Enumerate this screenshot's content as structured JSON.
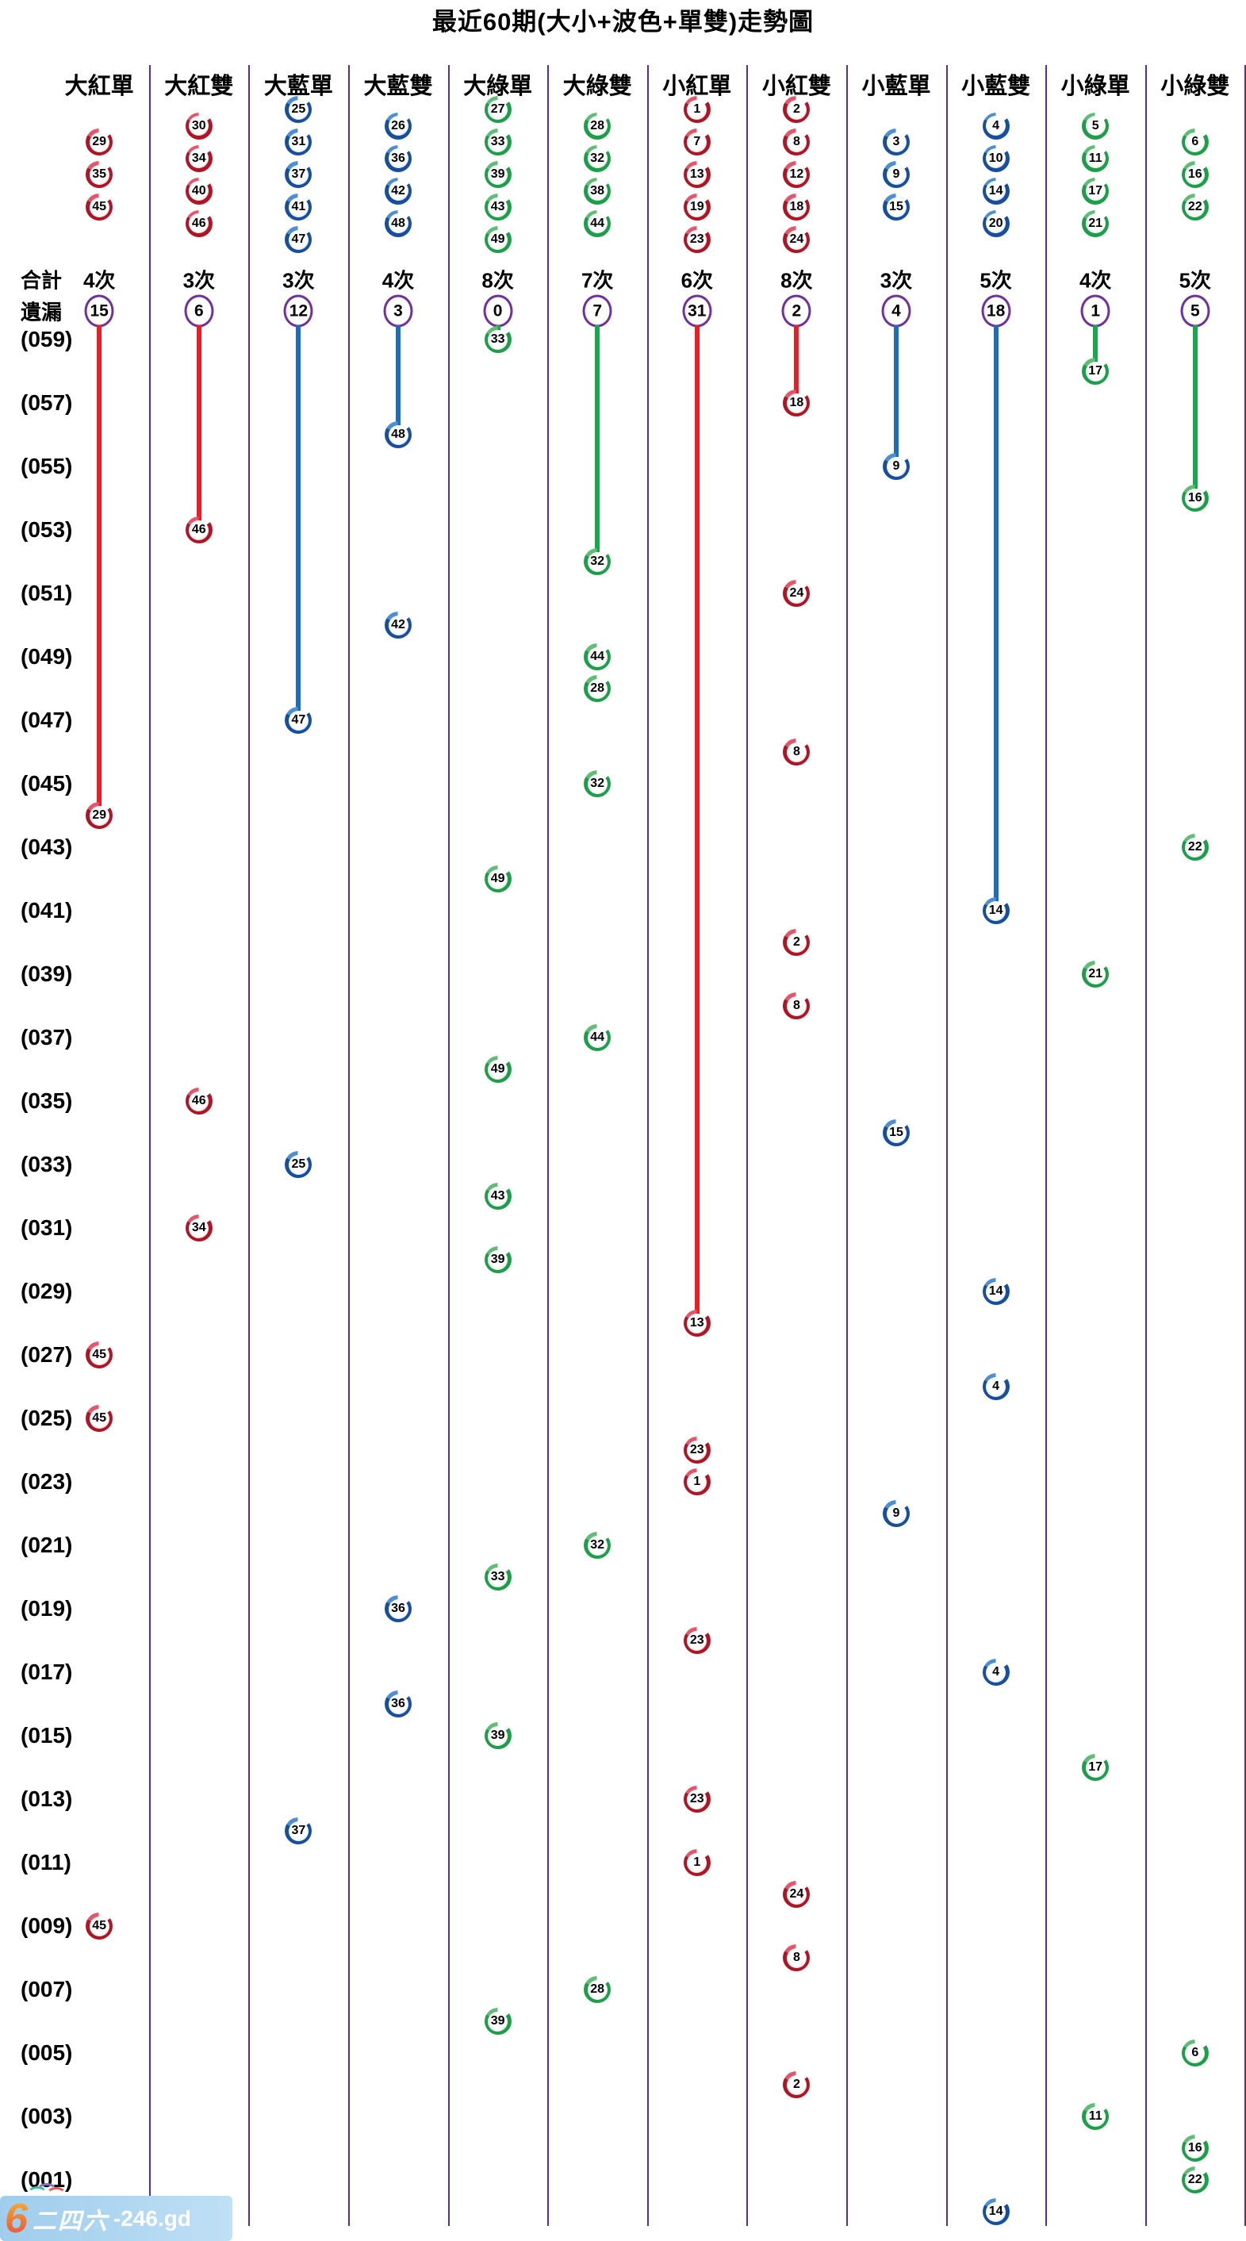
{
  "labels": {
    "total_label": "合計",
    "miss_label": "遺漏",
    "times_suffix": "次"
  },
  "colors": {
    "purple": "#5b2d8e",
    "circle_purple": "#7030a0",
    "red": {
      "line": "#ee1c25",
      "dark": "#b01425",
      "light": "#e8556a"
    },
    "blue": {
      "line": "#1c6dc1",
      "dark": "#164f9e",
      "light": "#4c8fd6"
    },
    "green": {
      "line": "#17a84b",
      "dark": "#1d9e4b",
      "light": "#5fbe75"
    }
  },
  "watermark": {
    "logo_char": "6",
    "brand_cn": "二四六",
    "brand_suffix": "-246.gd"
  },
  "chart_data": {
    "type": "scatter",
    "title": "最近60期(大小+波色+單雙)走勢圖",
    "legend_note": "columns are category lanes; points mark which category each period's number fell into; vertical line shows span since most recent hit",
    "columns": [
      {
        "label": "大紅單",
        "group": "red",
        "numbers": [
          29,
          35,
          45
        ],
        "total": 4,
        "miss": 15
      },
      {
        "label": "大紅雙",
        "group": "red",
        "numbers": [
          30,
          34,
          40,
          46
        ],
        "total": 3,
        "miss": 6
      },
      {
        "label": "大藍單",
        "group": "blue",
        "numbers": [
          25,
          31,
          37,
          41,
          47
        ],
        "total": 3,
        "miss": 12
      },
      {
        "label": "大藍雙",
        "group": "blue",
        "numbers": [
          26,
          36,
          42,
          48
        ],
        "total": 4,
        "miss": 3
      },
      {
        "label": "大綠單",
        "group": "green",
        "numbers": [
          27,
          33,
          39,
          43,
          49
        ],
        "total": 8,
        "miss": 0
      },
      {
        "label": "大綠雙",
        "group": "green",
        "numbers": [
          28,
          32,
          38,
          44
        ],
        "total": 7,
        "miss": 7
      },
      {
        "label": "小紅單",
        "group": "red",
        "numbers": [
          1,
          7,
          13,
          19,
          23
        ],
        "total": 6,
        "miss": 31
      },
      {
        "label": "小紅雙",
        "group": "red",
        "numbers": [
          2,
          8,
          12,
          18,
          24
        ],
        "total": 8,
        "miss": 2
      },
      {
        "label": "小藍單",
        "group": "blue",
        "numbers": [
          3,
          9,
          15
        ],
        "total": 3,
        "miss": 4
      },
      {
        "label": "小藍雙",
        "group": "blue",
        "numbers": [
          4,
          10,
          14,
          20
        ],
        "total": 5,
        "miss": 18
      },
      {
        "label": "小綠單",
        "group": "green",
        "numbers": [
          5,
          11,
          17,
          21
        ],
        "total": 4,
        "miss": 1
      },
      {
        "label": "小綠雙",
        "group": "green",
        "numbers": [
          6,
          16,
          22
        ],
        "total": 5,
        "miss": 5
      }
    ],
    "row_labels": [
      "(059)",
      "(057)",
      "(055)",
      "(053)",
      "(051)",
      "(049)",
      "(047)",
      "(045)",
      "(043)",
      "(041)",
      "(039)",
      "(037)",
      "(035)",
      "(033)",
      "(031)",
      "(029)",
      "(027)",
      "(025)",
      "(023)",
      "(021)",
      "(019)",
      "(017)",
      "(015)",
      "(013)",
      "(011)",
      "(009)",
      "(007)",
      "(005)",
      "(003)",
      "(001)"
    ],
    "points": [
      {
        "period": 59,
        "col": 4,
        "number": 33
      },
      {
        "period": 58,
        "col": 10,
        "number": 17
      },
      {
        "period": 57,
        "col": 7,
        "number": 18
      },
      {
        "period": 56,
        "col": 3,
        "number": 48
      },
      {
        "period": 55,
        "col": 8,
        "number": 9
      },
      {
        "period": 54,
        "col": 11,
        "number": 16
      },
      {
        "period": 53,
        "col": 1,
        "number": 46
      },
      {
        "period": 52,
        "col": 5,
        "number": 32
      },
      {
        "period": 51,
        "col": 7,
        "number": 24
      },
      {
        "period": 50,
        "col": 3,
        "number": 42
      },
      {
        "period": 49,
        "col": 5,
        "number": 44
      },
      {
        "period": 48,
        "col": 5,
        "number": 28
      },
      {
        "period": 47,
        "col": 2,
        "number": 47
      },
      {
        "period": 46,
        "col": 7,
        "number": 8
      },
      {
        "period": 45,
        "col": 5,
        "number": 32
      },
      {
        "period": 44,
        "col": 0,
        "number": 29
      },
      {
        "period": 43,
        "col": 11,
        "number": 22
      },
      {
        "period": 42,
        "col": 4,
        "number": 49
      },
      {
        "period": 41,
        "col": 9,
        "number": 14
      },
      {
        "period": 40,
        "col": 7,
        "number": 2
      },
      {
        "period": 39,
        "col": 10,
        "number": 21
      },
      {
        "period": 38,
        "col": 7,
        "number": 8
      },
      {
        "period": 37,
        "col": 5,
        "number": 44
      },
      {
        "period": 36,
        "col": 4,
        "number": 49
      },
      {
        "period": 35,
        "col": 1,
        "number": 46
      },
      {
        "period": 34,
        "col": 8,
        "number": 15
      },
      {
        "period": 33,
        "col": 2,
        "number": 25
      },
      {
        "period": 32,
        "col": 4,
        "number": 43
      },
      {
        "period": 31,
        "col": 1,
        "number": 34
      },
      {
        "period": 30,
        "col": 4,
        "number": 39
      },
      {
        "period": 29,
        "col": 9,
        "number": 14
      },
      {
        "period": 28,
        "col": 6,
        "number": 13
      },
      {
        "period": 27,
        "col": 0,
        "number": 45
      },
      {
        "period": 26,
        "col": 9,
        "number": 4
      },
      {
        "period": 25,
        "col": 0,
        "number": 45
      },
      {
        "period": 24,
        "col": 6,
        "number": 23
      },
      {
        "period": 23,
        "col": 6,
        "number": 1
      },
      {
        "period": 22,
        "col": 8,
        "number": 9
      },
      {
        "period": 21,
        "col": 5,
        "number": 32
      },
      {
        "period": 20,
        "col": 4,
        "number": 33
      },
      {
        "period": 19,
        "col": 3,
        "number": 36
      },
      {
        "period": 18,
        "col": 6,
        "number": 23
      },
      {
        "period": 17,
        "col": 9,
        "number": 4
      },
      {
        "period": 16,
        "col": 3,
        "number": 36
      },
      {
        "period": 15,
        "col": 4,
        "number": 39
      },
      {
        "period": 14,
        "col": 10,
        "number": 17
      },
      {
        "period": 13,
        "col": 6,
        "number": 23
      },
      {
        "period": 12,
        "col": 2,
        "number": 37
      },
      {
        "period": 11,
        "col": 6,
        "number": 1
      },
      {
        "period": 10,
        "col": 7,
        "number": 24
      },
      {
        "period": 9,
        "col": 0,
        "number": 45
      },
      {
        "period": 8,
        "col": 7,
        "number": 8
      },
      {
        "period": 7,
        "col": 5,
        "number": 28
      },
      {
        "period": 6,
        "col": 4,
        "number": 39
      },
      {
        "period": 5,
        "col": 11,
        "number": 6
      },
      {
        "period": 4,
        "col": 7,
        "number": 2
      },
      {
        "period": 3,
        "col": 10,
        "number": 11
      },
      {
        "period": 2,
        "col": 11,
        "number": 16
      },
      {
        "period": 1,
        "col": 11,
        "number": 22
      },
      {
        "period": 0,
        "col": 9,
        "number": 14
      }
    ]
  }
}
